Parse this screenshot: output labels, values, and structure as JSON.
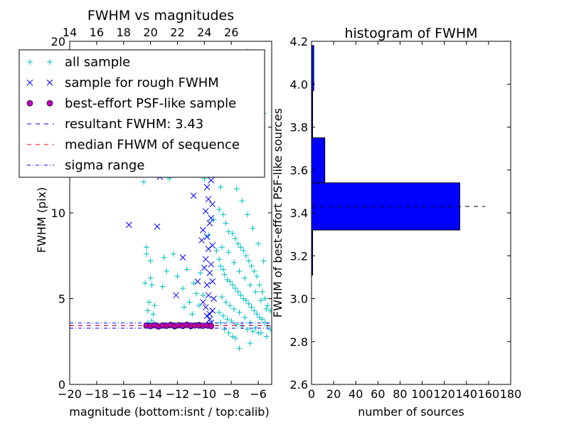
{
  "chart_data": [
    {
      "type": "scatter",
      "title": "FWHM vs magnitudes",
      "xlabel": "magnitude (bottom:isnt / top:calib)",
      "ylabel": "FWHM (pix)",
      "xlim": [
        -20,
        -5
      ],
      "ylim": [
        0,
        20
      ],
      "xticks": [
        -20,
        -18,
        -16,
        -14,
        -12,
        -10,
        -8,
        -6
      ],
      "xtick_labels": [
        "−20",
        "−18",
        "−16",
        "−14",
        "−12",
        "−10",
        "−8",
        "−6"
      ],
      "yticks": [
        0,
        5,
        10,
        15,
        20
      ],
      "ytick_labels": [
        "0",
        "5",
        "10",
        "15",
        "20"
      ],
      "top_axis": {
        "label": "calib",
        "ticks": [
          14,
          16,
          18,
          20,
          22,
          24,
          26
        ],
        "offset_from_bottom": 34
      },
      "legend": {
        "placement": "upper-left",
        "entries": [
          {
            "label": "all sample",
            "marker": "plus",
            "color": "#00bfbf"
          },
          {
            "label": "sample for rough FWHM",
            "marker": "x",
            "color": "#0000ff"
          },
          {
            "label": "best-effort PSF-like sample",
            "marker": "circle",
            "color": "#bf00bf"
          },
          {
            "label": "resultant FWHM: 3.43",
            "marker": "dashed",
            "color": "#0000ff"
          },
          {
            "label": "median FHWM of sequence",
            "marker": "dashed",
            "color": "#ff0000"
          },
          {
            "label": "sigma range",
            "marker": "dashdot",
            "color": "#0000ff"
          }
        ]
      },
      "series": [
        {
          "name": "all sample",
          "marker": "plus",
          "color": "#00bfbf",
          "points": [
            [
              -14.3,
              8.0
            ],
            [
              -14.3,
              7.6
            ],
            [
              -14.0,
              7.2
            ],
            [
              -14.0,
              6.2
            ],
            [
              -13.9,
              5.8
            ],
            [
              -14.4,
              5.9
            ],
            [
              -13.7,
              4.6
            ],
            [
              -14.1,
              4.8
            ],
            [
              -14.2,
              4.3
            ],
            [
              -13.9,
              3.7
            ],
            [
              -14.2,
              3.6
            ],
            [
              -13.8,
              4.1
            ],
            [
              -13.0,
              7.4
            ],
            [
              -13.1,
              5.7
            ],
            [
              -12.8,
              6.6
            ],
            [
              -12.3,
              7.6
            ],
            [
              -12.0,
              6.3
            ],
            [
              -11.6,
              5.6
            ],
            [
              -11.5,
              4.5
            ],
            [
              -11.3,
              6.7
            ],
            [
              -11.1,
              4.8
            ],
            [
              -10.8,
              5.9
            ],
            [
              -10.6,
              5.3
            ],
            [
              -10.4,
              4.6
            ],
            [
              -10.3,
              6.5
            ],
            [
              -10.1,
              5.2
            ],
            [
              -10.9,
              4.1
            ],
            [
              -10.0,
              12.0
            ],
            [
              -12.6,
              12.0
            ],
            [
              -14.5,
              11.8
            ],
            [
              -9.7,
              8.7
            ],
            [
              -9.3,
              9.6
            ],
            [
              -9.1,
              7.8
            ],
            [
              -8.7,
              13.0
            ],
            [
              -8.5,
              17.2
            ],
            [
              -8.3,
              19.2
            ],
            [
              -8.0,
              15.5
            ],
            [
              -7.6,
              18.6
            ],
            [
              -7.2,
              16.8
            ],
            [
              -6.8,
              19.4
            ],
            [
              -6.4,
              17.6
            ],
            [
              -5.9,
              18.8
            ],
            [
              -5.6,
              15.8
            ],
            [
              -8.8,
              11.5
            ],
            [
              -8.9,
              10.2
            ],
            [
              -8.6,
              9.9
            ],
            [
              -8.4,
              9.4
            ],
            [
              -8.2,
              8.9
            ],
            [
              -7.9,
              8.8
            ],
            [
              -7.7,
              8.5
            ],
            [
              -7.5,
              8.2
            ],
            [
              -7.3,
              8.0
            ],
            [
              -7.1,
              7.8
            ],
            [
              -6.9,
              7.5
            ],
            [
              -6.7,
              7.2
            ],
            [
              -6.5,
              6.9
            ],
            [
              -6.3,
              6.6
            ],
            [
              -6.1,
              6.3
            ],
            [
              -5.9,
              5.8
            ],
            [
              -5.7,
              5.4
            ],
            [
              -5.5,
              5.0
            ],
            [
              -5.3,
              4.6
            ],
            [
              -5.1,
              4.3
            ],
            [
              -8.9,
              7.3
            ],
            [
              -8.8,
              6.9
            ],
            [
              -8.6,
              6.7
            ],
            [
              -8.5,
              6.4
            ],
            [
              -8.3,
              6.1
            ],
            [
              -8.1,
              6.0
            ],
            [
              -7.9,
              5.8
            ],
            [
              -7.7,
              5.6
            ],
            [
              -7.5,
              5.4
            ],
            [
              -7.3,
              5.2
            ],
            [
              -7.1,
              5.0
            ],
            [
              -6.9,
              4.9
            ],
            [
              -6.7,
              4.7
            ],
            [
              -6.5,
              4.5
            ],
            [
              -6.3,
              4.3
            ],
            [
              -6.1,
              4.1
            ],
            [
              -5.9,
              3.9
            ],
            [
              -5.7,
              3.8
            ],
            [
              -5.5,
              3.6
            ],
            [
              -5.3,
              3.4
            ],
            [
              -5.1,
              3.2
            ],
            [
              -8.7,
              5.1
            ],
            [
              -8.4,
              4.8
            ],
            [
              -8.1,
              4.6
            ],
            [
              -7.8,
              4.4
            ],
            [
              -7.4,
              4.2
            ],
            [
              -7.0,
              3.9
            ],
            [
              -6.6,
              3.6
            ],
            [
              -6.2,
              3.3
            ],
            [
              -5.8,
              3.0
            ],
            [
              -5.4,
              2.8
            ],
            [
              -7.4,
              2.1
            ],
            [
              -6.6,
              2.4
            ],
            [
              -8.8,
              3.6
            ],
            [
              -8.5,
              3.2
            ],
            [
              -8.2,
              3.0
            ],
            [
              -7.9,
              2.8
            ],
            [
              -7.7,
              2.7
            ],
            [
              -8.0,
              12.3
            ],
            [
              -7.6,
              11.4
            ],
            [
              -7.2,
              10.7
            ],
            [
              -6.8,
              9.9
            ],
            [
              -6.4,
              9.1
            ],
            [
              -6.0,
              8.2
            ],
            [
              -5.6,
              7.2
            ],
            [
              -8.7,
              8.0
            ],
            [
              -8.2,
              7.7
            ],
            [
              -7.8,
              7.1
            ],
            [
              -7.4,
              6.6
            ],
            [
              -7.0,
              6.2
            ],
            [
              -6.6,
              5.8
            ],
            [
              -6.2,
              5.4
            ],
            [
              -5.8,
              4.9
            ],
            [
              -5.4,
              4.4
            ],
            [
              -8.9,
              4.2
            ],
            [
              -8.6,
              4.0
            ],
            [
              -8.3,
              3.8
            ],
            [
              -8.0,
              3.7
            ],
            [
              -7.6,
              3.5
            ],
            [
              -7.2,
              3.4
            ],
            [
              -6.8,
              3.2
            ],
            [
              -6.4,
              3.1
            ],
            [
              -6.0,
              3.0
            ]
          ]
        },
        {
          "name": "sample for rough FWHM",
          "marker": "x",
          "color": "#0000ff",
          "points": [
            [
              -15.6,
              9.3
            ],
            [
              -13.5,
              9.2
            ],
            [
              -13.3,
              12.1
            ],
            [
              -12.1,
              5.2
            ],
            [
              -11.6,
              7.4
            ],
            [
              -10.8,
              11.0
            ],
            [
              -10.5,
              6.0
            ],
            [
              -10.2,
              8.4
            ],
            [
              -9.9,
              15.8
            ],
            [
              -9.8,
              14.5
            ],
            [
              -9.7,
              13.6
            ],
            [
              -9.9,
              12.3
            ],
            [
              -9.8,
              11.5
            ],
            [
              -9.7,
              10.8
            ],
            [
              -9.9,
              10.1
            ],
            [
              -9.6,
              9.4
            ],
            [
              -9.8,
              8.6
            ],
            [
              -9.7,
              7.9
            ],
            [
              -9.9,
              7.3
            ],
            [
              -9.6,
              6.5
            ],
            [
              -9.8,
              5.8
            ],
            [
              -9.7,
              5.2
            ],
            [
              -9.9,
              4.5
            ],
            [
              -9.6,
              4.1
            ],
            [
              -9.5,
              3.6
            ],
            [
              -9.6,
              12.8
            ],
            [
              -9.5,
              11.9
            ],
            [
              -9.4,
              10.5
            ],
            [
              -9.5,
              9.7
            ],
            [
              -9.4,
              8.1
            ],
            [
              -9.5,
              7.0
            ],
            [
              -9.4,
              6.0
            ],
            [
              -9.3,
              5.0
            ],
            [
              -9.4,
              4.3
            ],
            [
              -10.0,
              13.0
            ],
            [
              -10.1,
              9.0
            ],
            [
              -10.0,
              6.8
            ],
            [
              -10.1,
              4.8
            ],
            [
              -9.6,
              3.8
            ],
            [
              -9.8,
              4.0
            ]
          ]
        },
        {
          "name": "best-effort PSF-like sample",
          "marker": "circle",
          "color": "#bf00bf",
          "points": [
            [
              -14.3,
              3.43
            ],
            [
              -14.0,
              3.4
            ],
            [
              -13.7,
              3.45
            ],
            [
              -13.4,
              3.38
            ],
            [
              -13.1,
              3.44
            ],
            [
              -12.8,
              3.42
            ],
            [
              -12.5,
              3.47
            ],
            [
              -12.2,
              3.39
            ],
            [
              -11.9,
              3.45
            ],
            [
              -11.6,
              3.41
            ],
            [
              -11.3,
              3.48
            ],
            [
              -11.0,
              3.4
            ],
            [
              -10.7,
              3.44
            ],
            [
              -10.4,
              3.46
            ],
            [
              -10.1,
              3.42
            ],
            [
              -9.8,
              3.45
            ],
            [
              -9.5,
              3.4
            ]
          ]
        }
      ],
      "reference_lines": [
        {
          "name": "resultant FWHM: 3.43",
          "y": 3.43,
          "style": "dashed",
          "color": "#0000ff"
        },
        {
          "name": "median FHWM of sequence",
          "y": 3.43,
          "style": "dashed",
          "color": "#ff0000"
        },
        {
          "name": "sigma range",
          "y": 3.58,
          "style": "dashdot",
          "color": "#0000ff"
        },
        {
          "name": "sigma range",
          "y": 3.28,
          "style": "dashdot",
          "color": "#0000ff"
        }
      ]
    },
    {
      "type": "bar",
      "orientation": "horizontal",
      "title": "histogram of FWHM",
      "xlabel": "number of sources",
      "ylabel": "FWHM of best-effort PSF-like sources",
      "xlim": [
        0,
        180
      ],
      "ylim": [
        2.6,
        4.2
      ],
      "xticks": [
        0,
        20,
        40,
        60,
        80,
        100,
        120,
        140,
        160,
        180
      ],
      "yticks": [
        2.6,
        2.8,
        3.0,
        3.2,
        3.4,
        3.6,
        3.8,
        4.0,
        4.2
      ],
      "ytick_labels": [
        "2.6",
        "2.8",
        "3.0",
        "3.2",
        "3.4",
        "3.6",
        "3.8",
        "4.0",
        "4.2"
      ],
      "bar_color": "#0000ff",
      "bins": [
        {
          "y0": 3.11,
          "y1": 3.32,
          "count": 1
        },
        {
          "y0": 3.32,
          "y1": 3.54,
          "count": 134
        },
        {
          "y0": 3.54,
          "y1": 3.75,
          "count": 12
        },
        {
          "y0": 3.75,
          "y1": 3.97,
          "count": 1
        },
        {
          "y0": 3.97,
          "y1": 4.18,
          "count": 2
        }
      ],
      "reference_line": {
        "y": 3.43,
        "x0": 0,
        "x1": 157,
        "style": "dashed",
        "color": "#000000"
      }
    }
  ]
}
